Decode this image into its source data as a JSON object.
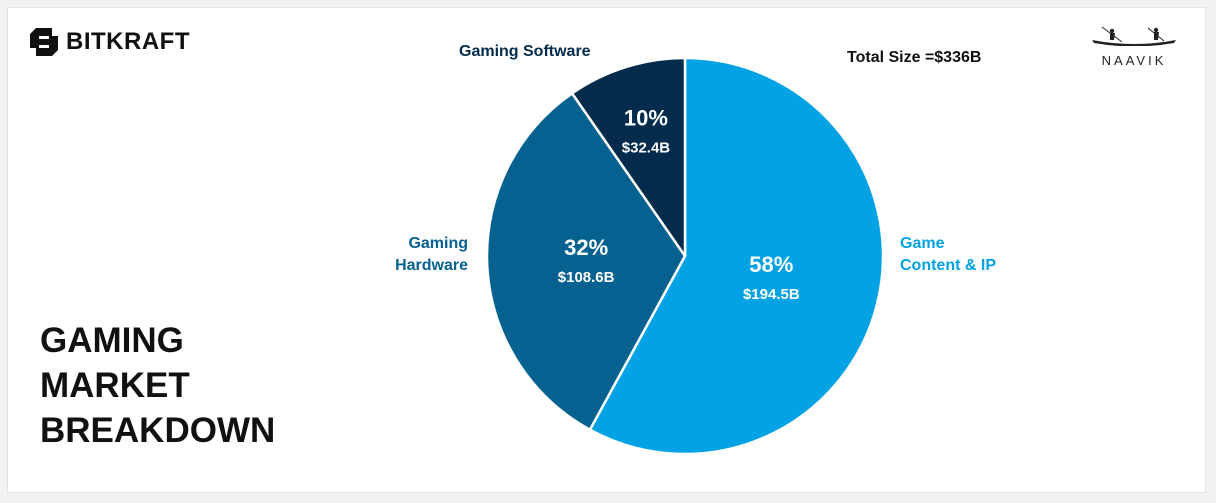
{
  "brand": {
    "name": "BITKRAFT",
    "icon": "bitkraft-logo-icon"
  },
  "partner": {
    "name": "NAAVIK",
    "icon": "boat-logo-icon"
  },
  "total_size": "Total Size =$336B",
  "page_title": [
    "GAMING",
    "MARKET",
    "BREAKDOWN"
  ],
  "colors": {
    "game_content": "#02a2e4",
    "hardware": "#05618f",
    "software": "#022b4c",
    "text_dark": "#111111"
  },
  "chart_data": {
    "type": "pie",
    "title": "GAMING MARKET BREAKDOWN",
    "total": "Total Size =$336B",
    "slices": [
      {
        "label": "Game Content & IP",
        "label_lines": [
          "Game",
          "Content & IP"
        ],
        "value": 194.5,
        "value_label": "$194.5B",
        "percent": 58,
        "percent_label": "58%",
        "color": "#02a2e4",
        "label_color": "#02a2e4"
      },
      {
        "label": "Gaming Hardware",
        "label_lines": [
          "Gaming",
          "Hardware"
        ],
        "value": 108.6,
        "value_label": "$108.6B",
        "percent": 32,
        "percent_label": "32%",
        "color": "#05618f",
        "label_color": "#05618f"
      },
      {
        "label": "Gaming Software",
        "label_lines": [
          "Gaming Software"
        ],
        "value": 32.4,
        "value_label": "$32.4B",
        "percent": 10,
        "percent_label": "10%",
        "color": "#022b4c",
        "label_color": "#022b4c"
      }
    ],
    "start": "12 o'clock",
    "direction": "clockwise",
    "legend": "none"
  }
}
